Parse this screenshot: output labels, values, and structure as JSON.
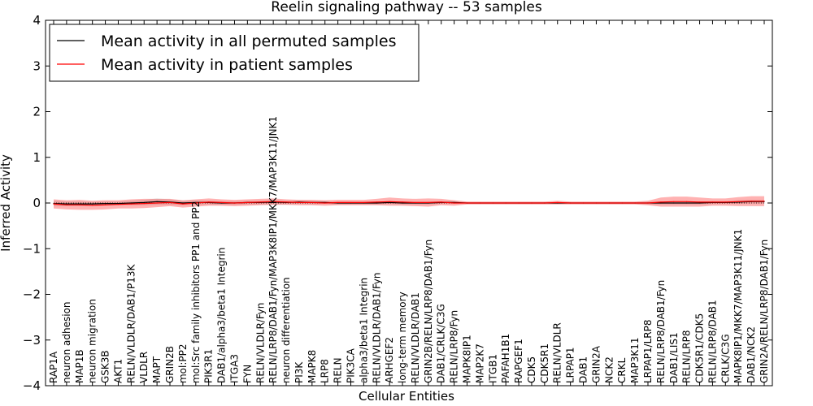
{
  "chart_data": {
    "type": "line",
    "title": "Reelin signaling pathway -- 53 samples",
    "xlabel": "Cellular Entities",
    "ylabel": "Inferred Activity",
    "ylim": [
      -4,
      4
    ],
    "yticks": [
      4,
      3,
      2,
      1,
      0,
      -1,
      -2,
      -3,
      -4
    ],
    "ytick_labels": [
      "4",
      "3",
      "2",
      "1",
      "0",
      "−1",
      "−2",
      "−3",
      "−4"
    ],
    "legend_position": "top-left",
    "categories": [
      "RAP1A",
      "neuron adhesion",
      "MAP1B",
      "neuron migration",
      "GSK3B",
      "AKT1",
      "RELN/VLDLR/DAB1/P13K",
      "VLDLR",
      "MAPT",
      "GRIN2B",
      "mol:PP2",
      "mol:Src family inhibitors PP1 and PP2",
      "PIK3R1",
      "DAB1/alpha3/beta1 Integrin",
      "ITGA3",
      "FYN",
      "RELN/VLDLR/Fyn",
      "RELN/LRP8/DAB1/Fyn/MAP3K8IP1/MKK7/MAP3K11/JNK1",
      "neuron differentiation",
      "PI3K",
      "MAPK8",
      "LRP8",
      "RELN",
      "PIK3CA",
      "alpha3/beta1 Integrin",
      "RELN/VLDLR/DAB1/Fyn",
      "ARHGEF2",
      "long-term memory",
      "RELN/VLDLR/DAB1",
      "GRIN2B/RELN/LRP8/DAB1/Fyn",
      "DAB1/CRLK/C3G",
      "RELN/LRP8/Fyn",
      "MAPK8IP1",
      "MAP2K7",
      "ITGB1",
      "PAFAH1B1",
      "RAPGEF1",
      "CDK5",
      "CDK5R1",
      "RELN/VLDLR",
      "LRPAP1",
      "DAB1",
      "GRIN2A",
      "NCK2",
      "CRKL",
      "MAP3K11",
      "LRPAP1/LRP8",
      "RELN/LRP8/DAB1/Fyn",
      "DAB1/LIS1",
      "RELN/LRP8",
      "CDK5R1/CDK5",
      "RELN/LRP8/DAB1",
      "CRLK/C3G",
      "MAPK8IP1/MKK7/MAP3K11/JNK1",
      "DAB1/NCK2",
      "GRIN2A/RELN/LRP8/DAB1/Fyn"
    ],
    "series": [
      {
        "name": "Mean activity in all permuted samples",
        "color": "#000000",
        "values": [
          -0.01,
          -0.02,
          -0.02,
          -0.02,
          -0.01,
          -0.01,
          0.0,
          0.01,
          0.03,
          0.02,
          0.0,
          0.01,
          0.01,
          0.0,
          0.0,
          0.01,
          0.01,
          0.02,
          0.01,
          0.02,
          0.01,
          0.01,
          0.0,
          0.0,
          0.0,
          0.0,
          0.01,
          0.0,
          0.0,
          0.0,
          0.01,
          0.01,
          0.0,
          0.0,
          0.0,
          0.0,
          0.0,
          0.0,
          0.0,
          0.0,
          0.0,
          0.0,
          0.0,
          0.0,
          0.0,
          0.0,
          0.0,
          0.0,
          0.0,
          0.0,
          0.0,
          0.01,
          0.01,
          0.02,
          0.03,
          0.03
        ]
      },
      {
        "name": "Mean activity in patient samples",
        "color": "#ff0000",
        "values": [
          -0.02,
          -0.04,
          -0.04,
          -0.05,
          -0.04,
          -0.03,
          -0.02,
          -0.01,
          0.0,
          0.01,
          -0.02,
          0.0,
          0.02,
          0.01,
          0.0,
          0.01,
          0.02,
          0.03,
          0.02,
          0.01,
          0.01,
          0.0,
          0.01,
          0.01,
          0.01,
          0.02,
          0.03,
          0.02,
          0.01,
          0.01,
          0.02,
          0.0,
          0.0,
          0.0,
          0.0,
          0.0,
          0.0,
          0.0,
          0.0,
          0.01,
          0.0,
          0.0,
          0.0,
          0.0,
          0.0,
          0.0,
          0.0,
          0.02,
          0.03,
          0.03,
          0.02,
          0.02,
          0.02,
          0.03,
          0.04,
          0.04
        ]
      }
    ],
    "bands": {
      "permuted_std": [
        0.06,
        0.05,
        0.05,
        0.04,
        0.04,
        0.04,
        0.05,
        0.06,
        0.07,
        0.06,
        0.05,
        0.05,
        0.04,
        0.04,
        0.04,
        0.04,
        0.04,
        0.05,
        0.04,
        0.04,
        0.04,
        0.03,
        0.03,
        0.03,
        0.03,
        0.03,
        0.03,
        0.03,
        0.03,
        0.03,
        0.03,
        0.03,
        0.02,
        0.02,
        0.02,
        0.02,
        0.02,
        0.02,
        0.02,
        0.02,
        0.02,
        0.02,
        0.02,
        0.02,
        0.02,
        0.02,
        0.03,
        0.03,
        0.03,
        0.03,
        0.03,
        0.03,
        0.03,
        0.04,
        0.04,
        0.04
      ],
      "patient_std": [
        0.1,
        0.1,
        0.11,
        0.1,
        0.1,
        0.09,
        0.1,
        0.1,
        0.09,
        0.08,
        0.08,
        0.08,
        0.08,
        0.07,
        0.07,
        0.07,
        0.07,
        0.07,
        0.06,
        0.06,
        0.06,
        0.06,
        0.06,
        0.06,
        0.06,
        0.07,
        0.09,
        0.08,
        0.08,
        0.09,
        0.07,
        0.06,
        0.03,
        0.03,
        0.03,
        0.03,
        0.03,
        0.03,
        0.03,
        0.04,
        0.03,
        0.03,
        0.03,
        0.03,
        0.03,
        0.03,
        0.05,
        0.1,
        0.11,
        0.11,
        0.1,
        0.08,
        0.08,
        0.1,
        0.11,
        0.11
      ]
    }
  }
}
